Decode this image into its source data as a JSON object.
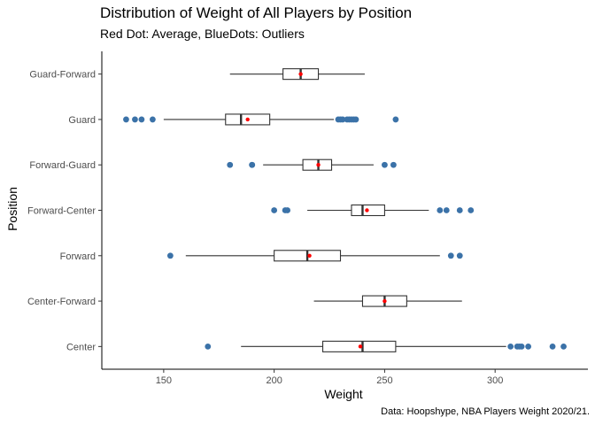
{
  "chart_data": {
    "type": "boxplot",
    "orientation": "horizontal",
    "title": "Distribution of Weight of All Players by Position",
    "subtitle": "Red Dot: Average, BlueDots: Outliers",
    "caption": "Data: Hoopshype, NBA Players Weight 2020/21.",
    "xlabel": "Weight",
    "ylabel": "Position",
    "xlim": [
      122,
      342
    ],
    "xticks": [
      150,
      200,
      250,
      300
    ],
    "grid": false,
    "categories": [
      "Guard-Forward",
      "Guard",
      "Forward-Guard",
      "Forward-Center",
      "Forward",
      "Center-Forward",
      "Center"
    ],
    "series": [
      {
        "category": "Guard-Forward",
        "whisker_low": 180,
        "q1": 204,
        "median": 212,
        "q3": 220,
        "whisker_high": 241,
        "mean": 212,
        "outliers": []
      },
      {
        "category": "Guard",
        "whisker_low": 150,
        "q1": 178,
        "median": 185,
        "q3": 198,
        "whisker_high": 227,
        "mean": 188,
        "outliers": [
          133,
          137,
          140,
          145,
          229,
          230,
          231,
          233,
          234,
          235,
          236,
          237,
          255
        ]
      },
      {
        "category": "Forward-Guard",
        "whisker_low": 195,
        "q1": 213,
        "median": 220,
        "q3": 226,
        "whisker_high": 245,
        "mean": 220,
        "outliers": [
          180,
          190,
          190,
          250,
          254
        ]
      },
      {
        "category": "Forward-Center",
        "whisker_low": 215,
        "q1": 235,
        "median": 240,
        "q3": 250,
        "whisker_high": 270,
        "mean": 242,
        "outliers": [
          200,
          205,
          206,
          275,
          278,
          284,
          289
        ]
      },
      {
        "category": "Forward",
        "whisker_low": 160,
        "q1": 200,
        "median": 215,
        "q3": 230,
        "whisker_high": 275,
        "mean": 216,
        "outliers": [
          153,
          280,
          284
        ]
      },
      {
        "category": "Center-Forward",
        "whisker_low": 218,
        "q1": 240,
        "median": 250,
        "q3": 260,
        "whisker_high": 285,
        "mean": 250,
        "outliers": []
      },
      {
        "category": "Center",
        "whisker_low": 185,
        "q1": 222,
        "median": 240,
        "q3": 255,
        "whisker_high": 305,
        "mean": 239,
        "outliers": [
          170,
          307,
          310,
          311,
          312,
          315,
          326,
          331
        ]
      }
    ],
    "colors": {
      "mean": "#ff0000",
      "outlier": "#3b72a8",
      "box": "#333333",
      "axis": "#000000"
    }
  }
}
